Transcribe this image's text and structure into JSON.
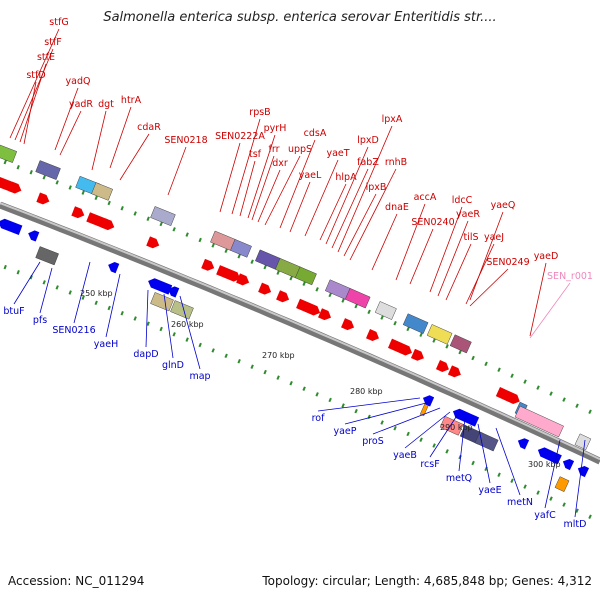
{
  "title": "Salmonella enterica subsp. enterica serovar Enteritidis str....",
  "footer": {
    "accession": "Accession: NC_011294",
    "stats": "Topology: circular; Length: 4,685,848 bp; Genes: 4,312"
  },
  "colors": {
    "forward_label": "#cc0000",
    "reverse_label": "#0000cc",
    "rna_label": "#ee88bb",
    "forward_arrow": "#ee0000",
    "reverse_arrow": "#0000ee"
  },
  "scale_ticks": [
    "250 kbp",
    "260 kbp",
    "270 kbp",
    "280 kbp",
    "290 kbp",
    "300 kbp"
  ],
  "forward_labels": [
    "stfG",
    "stfF",
    "stfE",
    "stfD",
    "yadQ",
    "yadR",
    "dgt",
    "htrA",
    "cdaR",
    "SEN0218",
    "SEN0222A",
    "rpsB",
    "tsf",
    "pyrH",
    "frr",
    "dxr",
    "uppS",
    "cdsA",
    "yaeL",
    "yaeT",
    "hlpA",
    "lpxD",
    "fabZ",
    "lpxA",
    "lpxB",
    "rnhB",
    "dnaE",
    "accA",
    "SEN0240",
    "ldcC",
    "yaeR",
    "tilS",
    "yaeQ",
    "yaeJ",
    "SEN0249",
    "yaeD"
  ],
  "rna_labels": [
    "SEN_r001"
  ],
  "reverse_labels": [
    "btuF",
    "pfs",
    "SEN0216",
    "yaeH",
    "dapD",
    "glnD",
    "map",
    "rof",
    "yaeP",
    "proS",
    "yaeB",
    "rcsF",
    "metQ",
    "yaeE",
    "metN",
    "yafC",
    "mltD"
  ]
}
